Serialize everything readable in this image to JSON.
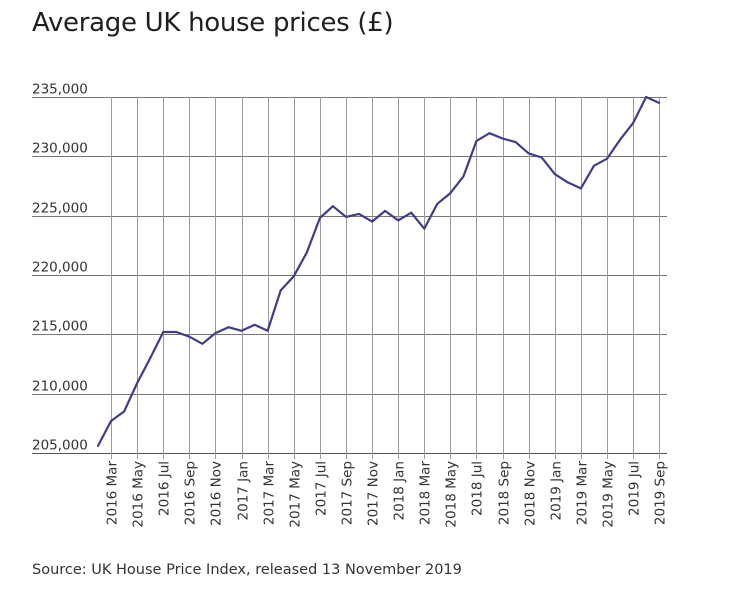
{
  "chart_data": {
    "type": "line",
    "title": "Average UK house prices (£)",
    "source": "Source: UK House Price Index, released 13 November 2019",
    "xlabel": "",
    "ylabel": "",
    "ylim": [
      205000,
      235000
    ],
    "yticks": [
      205000,
      210000,
      215000,
      220000,
      225000,
      230000,
      235000
    ],
    "ytick_labels": [
      "205,000",
      "210,000",
      "215,000",
      "220,000",
      "225,000",
      "230,000",
      "235,000"
    ],
    "grid": true,
    "legend": "none",
    "line_color": "#3d3d8a",
    "x": [
      "2016 Feb",
      "2016 Mar",
      "2016 Apr",
      "2016 May",
      "2016 Jun",
      "2016 Jul",
      "2016 Aug",
      "2016 Sep",
      "2016 Oct",
      "2016 Nov",
      "2016 Dec",
      "2017 Jan",
      "2017 Feb",
      "2017 Mar",
      "2017 Apr",
      "2017 May",
      "2017 Jun",
      "2017 Jul",
      "2017 Aug",
      "2017 Sep",
      "2017 Oct",
      "2017 Nov",
      "2017 Dec",
      "2018 Jan",
      "2018 Feb",
      "2018 Mar",
      "2018 Apr",
      "2018 May",
      "2018 Jun",
      "2018 Jul",
      "2018 Aug",
      "2018 Sep",
      "2018 Oct",
      "2018 Nov",
      "2018 Dec",
      "2019 Jan",
      "2019 Feb",
      "2019 Mar",
      "2019 Apr",
      "2019 May",
      "2019 Jun",
      "2019 Jul",
      "2019 Aug",
      "2019 Sep"
    ],
    "xtick_labels": [
      "2016 Mar",
      "2016 May",
      "2016 Jul",
      "2016 Sep",
      "2016 Nov",
      "2017 Jan",
      "2017 Mar",
      "2017 May",
      "2017 Jul",
      "2017 Sep",
      "2017 Nov",
      "2018 Jan",
      "2018 Mar",
      "2018 May",
      "2018 Jul",
      "2018 Sep",
      "2018 Nov",
      "2019 Jan",
      "2019 Mar",
      "2019 May",
      "2019 Jul",
      "2019 Sep"
    ],
    "series": [
      {
        "name": "Average UK house price",
        "values": [
          205600,
          207700,
          208500,
          210900,
          213000,
          215200,
          215200,
          214800,
          214200,
          215100,
          215600,
          215300,
          215800,
          215300,
          218700,
          219900,
          221900,
          224800,
          225800,
          224900,
          225150,
          224500,
          225400,
          224600,
          225250,
          223900,
          226000,
          226900,
          228300,
          231300,
          231950,
          231500,
          231200,
          230250,
          229900,
          228500,
          227800,
          227300,
          229200,
          229800,
          231400,
          232800,
          235000,
          234500
        ]
      }
    ]
  }
}
